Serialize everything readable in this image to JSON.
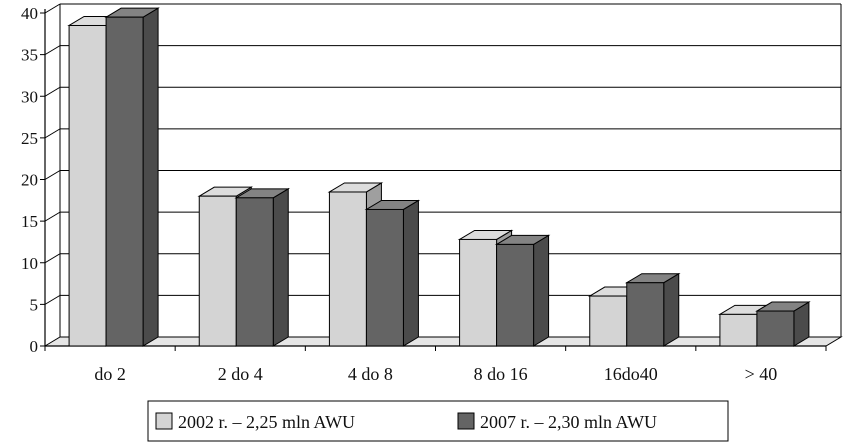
{
  "chart_data": {
    "type": "bar",
    "categories": [
      "do 2",
      "2 do 4",
      "4 do 8",
      "8 do 16",
      "16do40",
      "> 40"
    ],
    "series": [
      {
        "name": "2002 r. – 2,25 mln AWU",
        "values": [
          38.5,
          18.0,
          18.5,
          12.8,
          6.0,
          3.8
        ],
        "color": "#d4d4d4"
      },
      {
        "name": "2007 r. – 2,30 mln AWU",
        "values": [
          39.5,
          17.8,
          16.4,
          12.2,
          7.6,
          4.2
        ],
        "color": "#646464"
      }
    ],
    "y_ticks": [
      "0",
      "5",
      "10",
      "15",
      "20",
      "25",
      "30",
      "35",
      "40"
    ],
    "ylim": [
      0,
      40
    ],
    "grid": true,
    "three_d": true,
    "legend_position": "bottom"
  }
}
